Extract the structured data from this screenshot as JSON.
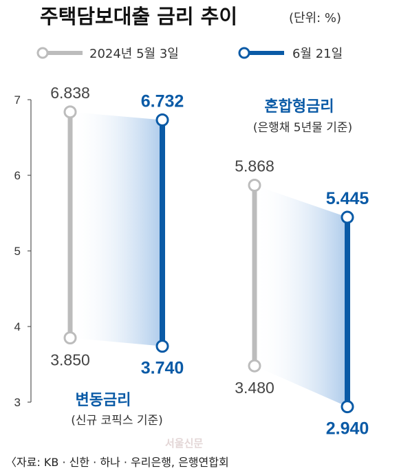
{
  "title": "주택담보대출 금리 추이",
  "unit": "(단위: %)",
  "legend": [
    {
      "label": "2024년 5월 3일",
      "color": "#bcbcbc"
    },
    {
      "label": "6월 21일",
      "color": "#0a5aa6"
    }
  ],
  "source": "〈자료: KB · 신한 · 하나 · 우리은행, 은행연합회",
  "watermark": "서울신문",
  "chart_data": {
    "type": "range-dumbbell",
    "ylim": [
      3,
      7
    ],
    "yticks": [
      "3",
      "4",
      "5",
      "6",
      "7"
    ],
    "grid": false,
    "groups": [
      {
        "name": "변동금리",
        "note": "(신규 코픽스 기준)",
        "may3": {
          "high": 6.838,
          "low": 3.85,
          "high_label": "6.838",
          "low_label": "3.850"
        },
        "jun21": {
          "high": 6.732,
          "low": 3.74,
          "high_label": "6.732",
          "low_label": "3.740"
        }
      },
      {
        "name": "혼합형금리",
        "note": "(은행채 5년물 기준)",
        "may3": {
          "high": 5.868,
          "low": 3.48,
          "high_label": "5.868",
          "low_label": "3.480"
        },
        "jun21": {
          "high": 5.445,
          "low": 2.94,
          "high_label": "5.445",
          "low_label": "2.940"
        }
      }
    ]
  }
}
